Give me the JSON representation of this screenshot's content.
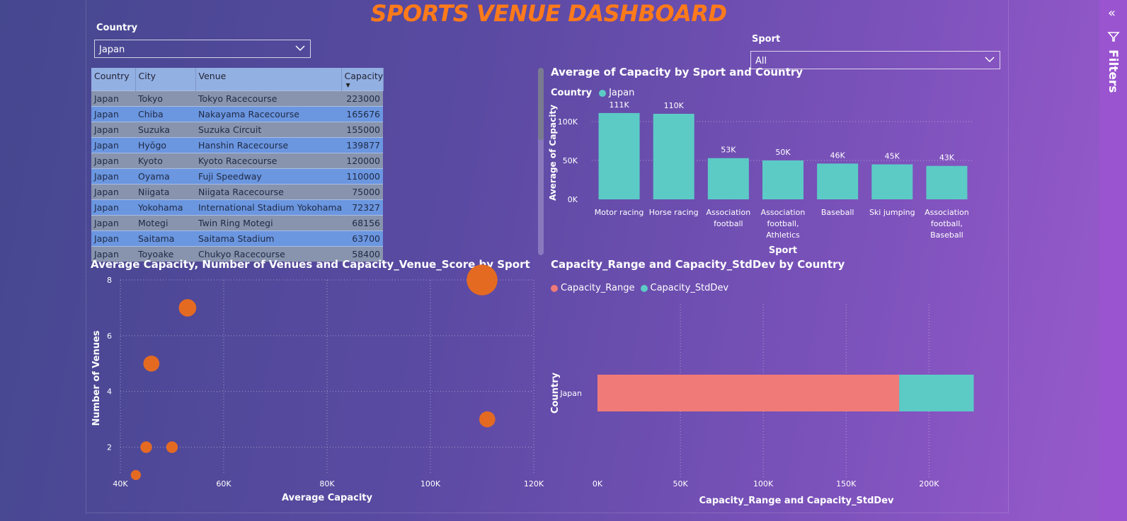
{
  "title": "SPORTS VENUE DASHBOARD",
  "country_slicer": {
    "label": "Country",
    "value": "Japan"
  },
  "sport_slicer": {
    "label": "Sport",
    "value": "All"
  },
  "table": {
    "columns": [
      "Country",
      "City",
      "Venue",
      "Capacity"
    ],
    "rows": [
      [
        "Japan",
        "Tokyo",
        "Tokyo Racecourse",
        "223000"
      ],
      [
        "Japan",
        "Chiba",
        "Nakayama Racecourse",
        "165676"
      ],
      [
        "Japan",
        "Suzuka",
        "Suzuka Circuit",
        "155000"
      ],
      [
        "Japan",
        "Hyōgo",
        "Hanshin Racecourse",
        "139877"
      ],
      [
        "Japan",
        "Kyoto",
        "Kyoto Racecourse",
        "120000"
      ],
      [
        "Japan",
        "Oyama",
        "Fuji Speedway",
        "110000"
      ],
      [
        "Japan",
        "Niigata",
        "Niigata Racecourse",
        "75000"
      ],
      [
        "Japan",
        "Yokohama",
        "International Stadium Yokohama",
        "72327"
      ],
      [
        "Japan",
        "Motegi",
        "Twin Ring Motegi",
        "68156"
      ],
      [
        "Japan",
        "Saitama",
        "Saitama Stadium",
        "63700"
      ],
      [
        "Japan",
        "Toyoake",
        "Chukyo Racecourse",
        "58400"
      ]
    ]
  },
  "bar_chart_title": "Average of Capacity by Sport and Country",
  "bar_legend": {
    "title": "Country",
    "item": "Japan"
  },
  "scatter_title": "Average Capacity, Number of Venues and Capacity_Venue_Score by Sport",
  "hbar_title": "Capacity_Range and Capacity_StdDev by Country",
  "hbar_legend": [
    "Capacity_Range",
    "Capacity_StdDev"
  ],
  "filters_label": "Filters",
  "colors": {
    "title": "#ff7a1a",
    "teal": "#5ccbc6",
    "orange": "#e46a22",
    "salmon": "#f07a78"
  },
  "chart_data": [
    {
      "type": "bar",
      "title": "Average of Capacity by Sport and Country",
      "xlabel": "Sport",
      "ylabel": "Average of Capacity",
      "categories": [
        [
          "Motor racing"
        ],
        [
          "Horse racing"
        ],
        [
          "Association",
          "football"
        ],
        [
          "Association",
          "football,",
          "Athletics"
        ],
        [
          "Baseball"
        ],
        [
          "Ski jumping"
        ],
        [
          "Association",
          "football,",
          "Baseball"
        ]
      ],
      "series": [
        {
          "name": "Japan",
          "values": [
            111000,
            110000,
            53000,
            50000,
            46000,
            45000,
            43000
          ]
        }
      ],
      "data_labels": [
        "111K",
        "110K",
        "53K",
        "50K",
        "46K",
        "45K",
        "43K"
      ],
      "y_ticks": [
        0,
        50000,
        100000
      ],
      "y_tick_labels": [
        "0K",
        "50K",
        "100K"
      ],
      "ylim": [
        0,
        120000
      ]
    },
    {
      "type": "scatter",
      "title": "Average Capacity, Number of Venues and Capacity_Venue_Score by Sport",
      "xlabel": "Average Capacity",
      "ylabel": "Number of Venues",
      "x_ticks": [
        40000,
        60000,
        80000,
        100000,
        120000
      ],
      "x_tick_labels": [
        "40K",
        "60K",
        "80K",
        "100K",
        "120K"
      ],
      "y_ticks": [
        2,
        4,
        6,
        8
      ],
      "y_tick_labels": [
        "2",
        "4",
        "6",
        "8"
      ],
      "xlim": [
        40000,
        120000
      ],
      "ylim": [
        1,
        8
      ],
      "points": [
        {
          "x": 110000,
          "y": 8,
          "size": 8
        },
        {
          "x": 53000,
          "y": 7,
          "size": 3.5
        },
        {
          "x": 46000,
          "y": 5,
          "size": 3
        },
        {
          "x": 111000,
          "y": 3,
          "size": 3
        },
        {
          "x": 45000,
          "y": 2,
          "size": 1.5
        },
        {
          "x": 50000,
          "y": 2,
          "size": 1.5
        },
        {
          "x": 43000,
          "y": 1,
          "size": 1
        }
      ]
    },
    {
      "type": "bar",
      "orientation": "horizontal",
      "stacked": true,
      "title": "Capacity_Range and Capacity_StdDev by Country",
      "xlabel": "Capacity_Range and Capacity_StdDev",
      "ylabel": "Country",
      "categories": [
        "Japan"
      ],
      "series": [
        {
          "name": "Capacity_Range",
          "values": [
            182000
          ]
        },
        {
          "name": "Capacity_StdDev",
          "values": [
            45000
          ]
        }
      ],
      "x_ticks": [
        0,
        50000,
        100000,
        150000,
        200000
      ],
      "x_tick_labels": [
        "0K",
        "50K",
        "100K",
        "150K",
        "200K"
      ],
      "xlim": [
        0,
        240000
      ]
    }
  ]
}
